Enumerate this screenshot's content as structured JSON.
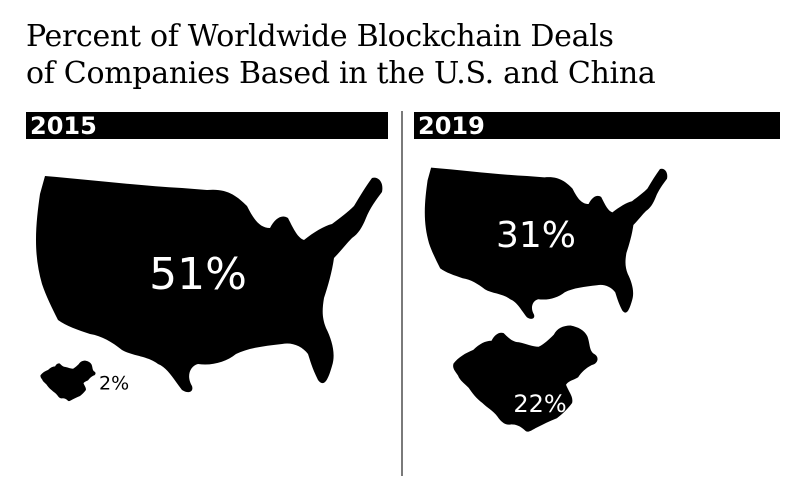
{
  "title": {
    "line1": "Percent of Worldwide Blockchain Deals",
    "line2": "of Companies Based in the U.S. and China"
  },
  "colors": {
    "map_fill": "#000000",
    "label_on_map": "#ffffff",
    "label_off_map": "#000000",
    "divider": "#7a7a7a"
  },
  "chart_data": {
    "type": "table",
    "title": "Percent of Worldwide Blockchain Deals of Companies Based in the U.S. and China",
    "columns": [
      "2015",
      "2019"
    ],
    "rows": [
      {
        "country": "U.S.",
        "icon": "usa-map-icon",
        "values": [
          51,
          31
        ],
        "labels": [
          "51%",
          "31%"
        ]
      },
      {
        "country": "China",
        "icon": "china-map-icon",
        "values": [
          2,
          22
        ],
        "labels": [
          "2%",
          "22%"
        ]
      }
    ]
  }
}
